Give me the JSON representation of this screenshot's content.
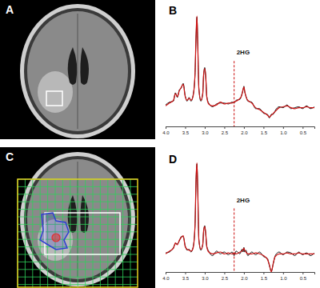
{
  "images": [
    {
      "label": "A"
    },
    {
      "label": "C"
    }
  ],
  "chart_data": [
    {
      "type": "line",
      "title": "B",
      "x": [
        4.0,
        3.9,
        3.8,
        3.75,
        3.7,
        3.65,
        3.6,
        3.55,
        3.5,
        3.45,
        3.4,
        3.35,
        3.3,
        3.25,
        3.22,
        3.2,
        3.18,
        3.15,
        3.1,
        3.05,
        3.03,
        3.0,
        2.97,
        2.95,
        2.9,
        2.8,
        2.7,
        2.6,
        2.5,
        2.4,
        2.3,
        2.25,
        2.2,
        2.1,
        2.05,
        2.02,
        2.0,
        1.98,
        1.95,
        1.9,
        1.8,
        1.7,
        1.6,
        1.5,
        1.4,
        1.35,
        1.3,
        1.25,
        1.2,
        1.1,
        1.0,
        0.9,
        0.8,
        0.7,
        0.6,
        0.5,
        0.4,
        0.3,
        0.2
      ],
      "series": [
        {
          "color": "#000000",
          "values": [
            0.03,
            0.06,
            0.07,
            0.16,
            0.11,
            0.19,
            0.21,
            0.26,
            0.13,
            0.07,
            0.11,
            0.07,
            0.13,
            0.34,
            0.79,
            0.97,
            0.71,
            0.21,
            0.07,
            0.16,
            0.34,
            0.43,
            0.29,
            0.13,
            0.05,
            0.01,
            0.04,
            0.05,
            0.05,
            0.04,
            0.06,
            0.05,
            0.08,
            0.09,
            0.15,
            0.19,
            0.23,
            0.17,
            0.13,
            0.07,
            0.06,
            -0.01,
            -0.01,
            -0.06,
            -0.07,
            -0.11,
            -0.07,
            -0.07,
            -0.03,
            0.01,
            0.0,
            0.03,
            -0.01,
            0.0,
            0.01,
            -0.01,
            0.02,
            -0.01,
            0.01
          ]
        },
        {
          "color": "#cc1111",
          "values": [
            0.02,
            0.05,
            0.08,
            0.15,
            0.12,
            0.18,
            0.22,
            0.25,
            0.12,
            0.08,
            0.1,
            0.08,
            0.12,
            0.35,
            0.8,
            0.98,
            0.7,
            0.2,
            0.08,
            0.15,
            0.35,
            0.42,
            0.3,
            0.12,
            0.04,
            0.02,
            0.03,
            0.06,
            0.04,
            0.05,
            0.05,
            0.06,
            0.07,
            0.1,
            0.14,
            0.2,
            0.22,
            0.18,
            0.12,
            0.08,
            0.05,
            0.0,
            -0.02,
            -0.05,
            -0.08,
            -0.1,
            -0.08,
            -0.06,
            -0.04,
            0.0,
            0.01,
            0.02,
            0.0,
            -0.01,
            0.0,
            0.0,
            0.01,
            0.0,
            0.0
          ]
        }
      ],
      "xlim": [
        4.0,
        0.2
      ],
      "xticks": [
        {
          "value": 4,
          "label": "4.0"
        },
        3.5,
        {
          "value": 3,
          "label": "3.0"
        },
        2.5,
        {
          "value": 2,
          "label": "2.0"
        },
        1.5,
        {
          "value": 1,
          "label": "1.0"
        },
        0.5
      ],
      "ylim": [
        -0.2,
        1.05
      ],
      "tick_labels": "x",
      "annotations": [
        {
          "text": "2HG",
          "x": 2.25
        }
      ]
    },
    {
      "type": "line",
      "title": "D",
      "x": [
        4.0,
        3.9,
        3.8,
        3.75,
        3.7,
        3.65,
        3.6,
        3.55,
        3.5,
        3.45,
        3.4,
        3.35,
        3.3,
        3.25,
        3.22,
        3.2,
        3.18,
        3.15,
        3.1,
        3.05,
        3.03,
        3.0,
        2.97,
        2.95,
        2.9,
        2.8,
        2.7,
        2.6,
        2.5,
        2.4,
        2.3,
        2.25,
        2.2,
        2.1,
        2.05,
        2.02,
        2.0,
        1.98,
        1.95,
        1.9,
        1.8,
        1.7,
        1.6,
        1.5,
        1.4,
        1.35,
        1.3,
        1.25,
        1.2,
        1.1,
        1.0,
        0.9,
        0.8,
        0.7,
        0.6,
        0.5,
        0.4,
        0.3,
        0.2
      ],
      "series": [
        {
          "color": "#000000",
          "values": [
            0.01,
            0.02,
            0.07,
            0.11,
            0.11,
            0.14,
            0.19,
            0.19,
            0.09,
            0.04,
            0.05,
            0.02,
            0.07,
            0.29,
            0.84,
            0.99,
            0.73,
            0.16,
            0.04,
            0.11,
            0.24,
            0.31,
            0.19,
            0.09,
            0.03,
            -0.02,
            0.03,
            0.0,
            0.02,
            -0.01,
            0.02,
            -0.02,
            0.03,
            0.0,
            0.05,
            0.02,
            0.07,
            0.02,
            0.04,
            -0.02,
            0.02,
            -0.01,
            0.02,
            -0.03,
            -0.05,
            -0.13,
            -0.19,
            -0.11,
            -0.02,
            0.02,
            -0.01,
            0.02,
            0.01,
            -0.02,
            0.02,
            -0.01,
            0.01,
            -0.02,
            0.01
          ]
        },
        {
          "color": "#cc1111",
          "values": [
            0.0,
            0.03,
            0.06,
            0.12,
            0.1,
            0.15,
            0.18,
            0.2,
            0.08,
            0.05,
            0.04,
            0.03,
            0.06,
            0.3,
            0.85,
            1.0,
            0.72,
            0.15,
            0.05,
            0.1,
            0.25,
            0.3,
            0.2,
            0.08,
            0.02,
            0.0,
            0.01,
            0.02,
            0.0,
            0.01,
            0.0,
            0.01,
            0.0,
            0.02,
            0.03,
            0.05,
            0.06,
            0.04,
            0.02,
            0.0,
            0.0,
            0.01,
            0.0,
            -0.02,
            -0.06,
            -0.12,
            -0.2,
            -0.1,
            -0.03,
            0.0,
            0.0,
            0.01,
            0.0,
            0.0,
            0.01,
            0.0,
            0.0,
            0.0,
            0.0
          ]
        }
      ],
      "xlim": [
        4.0,
        0.2
      ],
      "xticks": [
        {
          "value": 4,
          "label": "4.0"
        },
        3.5,
        {
          "value": 3,
          "label": "3.0"
        },
        2.5,
        {
          "value": 2,
          "label": "2.0"
        },
        1.5,
        {
          "value": 1,
          "label": "1.0"
        },
        0.5
      ],
      "ylim": [
        -0.2,
        1.05
      ],
      "tick_labels": "x",
      "annotations": [
        {
          "text": "2HG",
          "x": 2.25
        }
      ]
    }
  ]
}
